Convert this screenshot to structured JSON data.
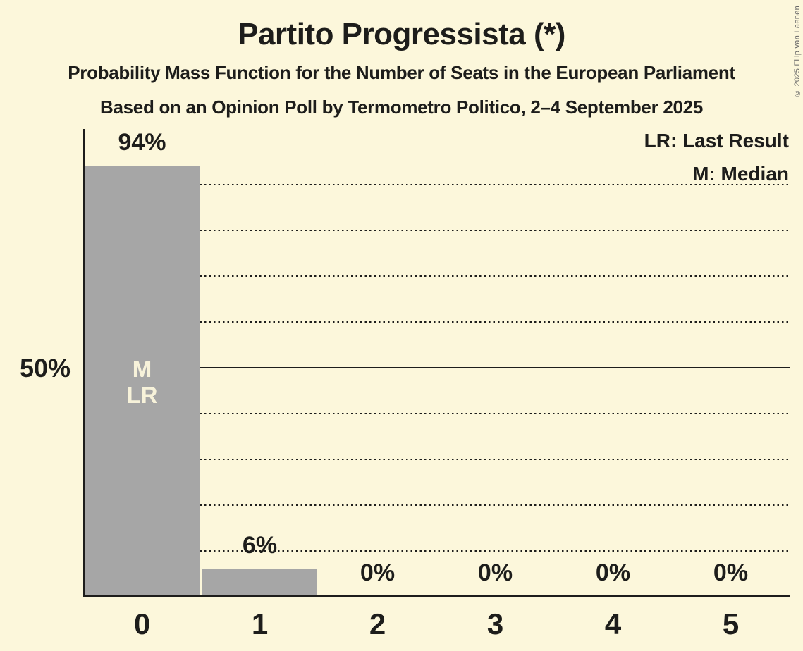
{
  "title": "Partito Progressista (*)",
  "subtitle1": "Probability Mass Function for the Number of Seats in the European Parliament",
  "subtitle2": "Based on an Opinion Poll by Termometro Politico, 2–4 September 2025",
  "copyright": "© 2025 Filip van Laenen",
  "legend": {
    "lr": "LR: Last Result",
    "m": "M: Median"
  },
  "y_axis_label": "50%",
  "colors": {
    "background": "#fcf7db",
    "bar": "#a6a6a6",
    "text": "#1d1d1b",
    "bar_annotation_text": "#f7f2da",
    "copyright_text": "#666666"
  },
  "chart_data": {
    "type": "bar",
    "title": "Partito Progressista (*)",
    "categories": [
      "0",
      "1",
      "2",
      "3",
      "4",
      "5"
    ],
    "values": [
      94,
      6,
      0,
      0,
      0,
      0
    ],
    "value_labels": [
      "94%",
      "6%",
      "0%",
      "0%",
      "0%",
      "0%"
    ],
    "bar_annotations": [
      [
        "M",
        "LR"
      ],
      [],
      [],
      [],
      [],
      []
    ],
    "median_seats": 0,
    "last_result_seats": 0,
    "ylim": [
      0,
      100
    ],
    "y_reference_line_percent": 50,
    "dotted_gridlines_percent": [
      10,
      20,
      30,
      40,
      60,
      70,
      80,
      90
    ],
    "grid": "dotted-horizontal",
    "legend_position": "top-right",
    "xlabel": "",
    "ylabel": ""
  }
}
